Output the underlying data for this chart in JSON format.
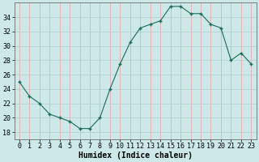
{
  "x": [
    0,
    1,
    2,
    3,
    4,
    5,
    6,
    7,
    8,
    9,
    10,
    11,
    12,
    13,
    14,
    15,
    16,
    17,
    18,
    19,
    20,
    21,
    22,
    23
  ],
  "y": [
    25.0,
    23.0,
    22.0,
    20.5,
    20.0,
    19.5,
    18.5,
    18.5,
    20.0,
    24.0,
    27.5,
    30.5,
    32.5,
    33.0,
    33.5,
    35.5,
    35.5,
    34.5,
    34.5,
    33.0,
    32.5,
    28.0,
    29.0,
    27.5
  ],
  "xlabel": "Humidex (Indice chaleur)",
  "ylim": [
    17,
    36
  ],
  "xlim": [
    -0.5,
    23.5
  ],
  "yticks": [
    18,
    20,
    22,
    24,
    26,
    28,
    30,
    32,
    34
  ],
  "xticks": [
    0,
    1,
    2,
    3,
    4,
    5,
    6,
    7,
    8,
    9,
    10,
    11,
    12,
    13,
    14,
    15,
    16,
    17,
    18,
    19,
    20,
    21,
    22,
    23
  ],
  "line_color": "#1a6b5a",
  "marker_color": "#1a6b5a",
  "bg_color": "#cce8e8",
  "grid_color_major": "#b0cccc",
  "grid_color_minor": "#f0a0a0",
  "tick_label_fontsize": 6,
  "xlabel_fontsize": 7
}
